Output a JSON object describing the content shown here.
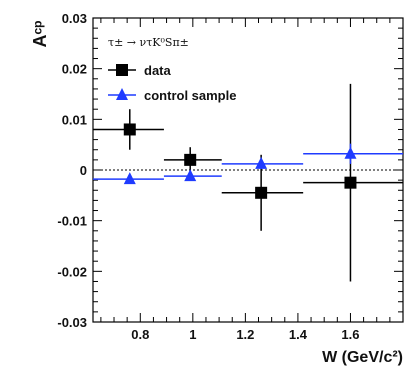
{
  "chart_data": {
    "type": "scatter",
    "xlabel": "W (GeV/c²)",
    "ylabel": "Aᶜᵖ",
    "xlim": [
      0.62,
      1.8
    ],
    "ylim": [
      -0.03,
      0.03
    ],
    "x_ticks": [
      "0.8",
      "1",
      "1.2",
      "1.4",
      "1.6"
    ],
    "y_ticks": [
      "0.03",
      "0.02",
      "0.01",
      "0",
      "-0.01",
      "-0.02",
      "-0.03"
    ],
    "legend_title": "τ± → ντK⁰Sπ±",
    "legend_position": "top-left",
    "reference_line": 0,
    "series": [
      {
        "name": "data",
        "marker": "square",
        "color": "#000000",
        "points": [
          {
            "x": 0.76,
            "y": 0.008,
            "x_low": 0.62,
            "x_high": 0.89,
            "y_err": 0.004
          },
          {
            "x": 0.99,
            "y": 0.002,
            "x_low": 0.89,
            "x_high": 1.11,
            "y_err": 0.0025
          },
          {
            "x": 1.26,
            "y": -0.0045,
            "x_low": 1.11,
            "x_high": 1.42,
            "y_err": 0.0075
          },
          {
            "x": 1.6,
            "y": -0.0025,
            "x_low": 1.42,
            "x_high": 1.8,
            "y_err": 0.0195
          }
        ]
      },
      {
        "name": "control sample",
        "marker": "triangle",
        "color": "#1f3bff",
        "points": [
          {
            "x": 0.76,
            "y": -0.0018,
            "x_low": 0.62,
            "x_high": 0.89,
            "y_err": 0.0008
          },
          {
            "x": 0.99,
            "y": -0.0012,
            "x_low": 0.89,
            "x_high": 1.11,
            "y_err": 0.0008
          },
          {
            "x": 1.26,
            "y": 0.0012,
            "x_low": 1.11,
            "x_high": 1.42,
            "y_err": 0.001
          },
          {
            "x": 1.6,
            "y": 0.0032,
            "x_low": 1.42,
            "x_high": 1.8,
            "y_err": 0.002
          }
        ]
      }
    ]
  }
}
